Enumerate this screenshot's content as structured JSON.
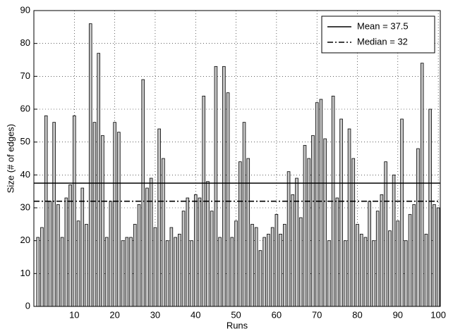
{
  "chart_data": {
    "type": "bar",
    "x": [
      1,
      2,
      3,
      4,
      5,
      6,
      7,
      8,
      9,
      10,
      11,
      12,
      13,
      14,
      15,
      16,
      17,
      18,
      19,
      20,
      21,
      22,
      23,
      24,
      25,
      26,
      27,
      28,
      29,
      30,
      31,
      32,
      33,
      34,
      35,
      36,
      37,
      38,
      39,
      40,
      41,
      42,
      43,
      44,
      45,
      46,
      47,
      48,
      49,
      50,
      51,
      52,
      53,
      54,
      55,
      56,
      57,
      58,
      59,
      60,
      61,
      62,
      63,
      64,
      65,
      66,
      67,
      68,
      69,
      70,
      71,
      72,
      73,
      74,
      75,
      76,
      77,
      78,
      79,
      80,
      81,
      82,
      83,
      84,
      85,
      86,
      87,
      88,
      89,
      90,
      91,
      92,
      93,
      94,
      95,
      96,
      97,
      98,
      99,
      100
    ],
    "values": [
      21,
      24,
      58,
      32,
      56,
      31,
      21,
      33,
      37,
      58,
      26,
      36,
      25,
      86,
      56,
      77,
      52,
      21,
      32,
      56,
      53,
      20,
      21,
      21,
      25,
      31,
      69,
      36,
      39,
      24,
      54,
      45,
      20,
      24,
      21,
      22,
      29,
      33,
      20,
      34,
      33,
      64,
      38,
      29,
      73,
      21,
      73,
      65,
      21,
      26,
      44,
      56,
      45,
      25,
      24,
      17,
      21,
      22,
      24,
      28,
      22,
      25,
      41,
      34,
      39,
      27,
      49,
      45,
      52,
      62,
      63,
      51,
      20,
      64,
      33,
      57,
      20,
      54,
      45,
      25,
      22,
      21,
      32,
      20,
      29,
      34,
      44,
      23,
      40,
      26,
      57,
      20,
      28,
      31,
      48,
      74,
      22,
      60,
      31,
      30
    ],
    "color": "#c8c8c8",
    "xlabel": "Runs",
    "ylabel": "Size (# of edges)",
    "xlim": [
      0,
      100.5
    ],
    "ylim": [
      0,
      90
    ],
    "xticks": [
      10,
      20,
      30,
      40,
      50,
      60,
      70,
      80,
      90,
      100
    ],
    "yticks": [
      0,
      10,
      20,
      30,
      40,
      50,
      60,
      70,
      80,
      90
    ],
    "grid": true,
    "reference_lines": [
      {
        "label": "Mean = 37.5",
        "value": 37.5,
        "style": "solid"
      },
      {
        "label": "Median = 32",
        "value": 32,
        "style": "dashdot"
      }
    ],
    "legend": "upper right"
  }
}
